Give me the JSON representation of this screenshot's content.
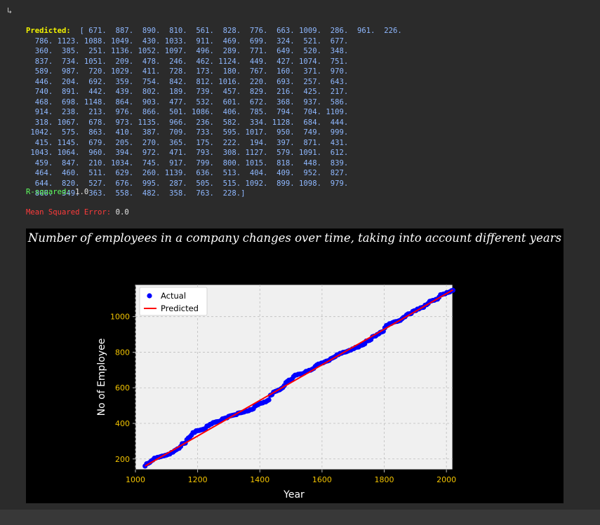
{
  "output": {
    "predicted_label": "Predicted:",
    "predicted_lines": [
      "[ 671.  887.  890.  810.  561.  828.  776.  663. 1009.  286.  961.  226.",
      "  786. 1123. 1088. 1049.  430. 1033.  911.  469.  699.  324.  521.  677.",
      "  360.  385.  251. 1136. 1052. 1097.  496.  289.  771.  649.  520.  348.",
      "  837.  734. 1051.  209.  478.  246.  462. 1124.  449.  427. 1074.  751.",
      "  589.  987.  720. 1029.  411.  728.  173.  180.  767.  160.  371.  970.",
      "  446.  204.  692.  359.  754.  842.  812. 1016.  220.  693.  257.  643.",
      "  740.  891.  442.  439.  802.  189.  739.  457.  829.  216.  425.  217.",
      "  468.  698. 1148.  864.  903.  477.  532.  601.  672.  368.  937.  586.",
      "  914.  238.  213.  976.  866.  501. 1086.  406.  785.  794.  704. 1109.",
      "  318. 1067.  678.  973. 1135.  966.  236.  582.  334. 1128.  684.  444.",
      " 1042.  575.  863.  410.  387.  709.  733.  595. 1017.  950.  749.  999.",
      "  415. 1145.  679.  205.  270.  365.  175.  222.  194.  397.  871.  431.",
      " 1043. 1064.  960.  394.  972.  471.  793.  308. 1127.  579. 1091.  612.",
      "  459.  847.  210. 1034.  745.  917.  799.  800. 1015.  818.  448.  839.",
      "  464.  460.  511.  629.  260. 1139.  636.  513.  404.  409.  952.  827.",
      "  644.  820.  527.  676.  995.  287.  505.  515. 1092.  899. 1098.  979.",
      "  806.  349.  363.  558.  482.  358.  763.  228.]"
    ],
    "r2_label": "R-squared:",
    "r2_value": "1.0",
    "mse_label": "Mean Squared Error:",
    "mse_value": "0.0"
  },
  "colors": {
    "actual": "#0000ff",
    "predicted": "#ff0000",
    "tick_labels": "#f2c300",
    "axes_bg": "#f0f0f0",
    "figure_bg": "#000000"
  },
  "chart_data": {
    "type": "scatter",
    "title": "Number of employees in a company changes over time, taking into account different years",
    "xlabel": "Year",
    "ylabel": "No of Employee",
    "xlim": [
      1000,
      2020
    ],
    "ylim": [
      140,
      1180
    ],
    "xticks": [
      1000,
      1200,
      1400,
      1600,
      1800,
      2000
    ],
    "yticks": [
      200,
      400,
      600,
      800,
      1000
    ],
    "grid": true,
    "legend_position": "top-left",
    "series": [
      {
        "name": "Actual",
        "kind": "scatter",
        "x_range": [
          1031,
          2021
        ],
        "y": [
          671,
          887,
          890,
          810,
          561,
          828,
          776,
          663,
          1009,
          286,
          961,
          226,
          786,
          1123,
          1088,
          1049,
          430,
          1033,
          911,
          469,
          699,
          324,
          521,
          677,
          360,
          385,
          251,
          1136,
          1052,
          1097,
          496,
          289,
          771,
          649,
          520,
          348,
          837,
          734,
          1051,
          209,
          478,
          246,
          462,
          1124,
          449,
          427,
          1074,
          751,
          589,
          987,
          720,
          1029,
          411,
          728,
          173,
          180,
          767,
          160,
          371,
          970,
          446,
          204,
          692,
          359,
          754,
          842,
          812,
          1016,
          220,
          693,
          257,
          643,
          740,
          891,
          442,
          439,
          802,
          189,
          739,
          457,
          829,
          216,
          425,
          217,
          468,
          698,
          1148,
          864,
          903,
          477,
          532,
          601,
          672,
          368,
          937,
          586,
          914,
          238,
          213,
          976,
          866,
          501,
          1086,
          406,
          785,
          794,
          704,
          1109,
          318,
          1067,
          678,
          973,
          1135,
          966,
          236,
          582,
          334,
          1128,
          684,
          444,
          1042,
          575,
          863,
          410,
          387,
          709,
          733,
          595,
          1017,
          950,
          749,
          999,
          415,
          1145,
          679,
          205,
          270,
          365,
          175,
          222,
          194,
          397,
          871,
          431,
          1043,
          1064,
          960,
          394,
          972,
          471,
          793,
          308,
          1127,
          579,
          1091,
          612,
          459,
          847,
          210,
          1034,
          745,
          917,
          799,
          800,
          1015,
          818,
          448,
          839,
          464,
          460,
          511,
          629,
          260,
          1139,
          636,
          513,
          404,
          409,
          952,
          827,
          644,
          820,
          527,
          676,
          995,
          287,
          505,
          515,
          1092,
          899,
          1098,
          979,
          806,
          349,
          363,
          558,
          482,
          358,
          763,
          228
        ]
      },
      {
        "name": "Predicted",
        "kind": "line",
        "x": [
          1031,
          2021
        ],
        "y": [
          160,
          1150
        ]
      }
    ]
  }
}
